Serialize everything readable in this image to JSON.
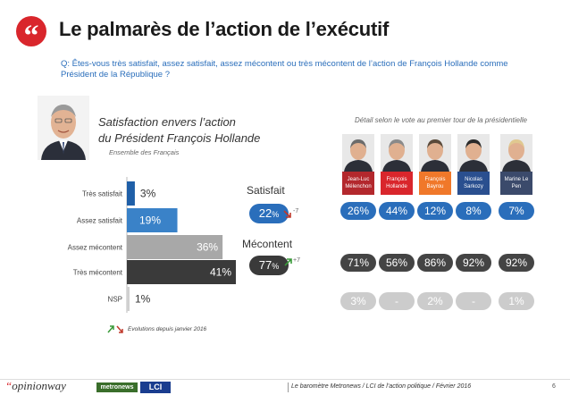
{
  "header": {
    "quote_glyph": "“",
    "title": "Le palmarès de l’action de l’exécutif",
    "question": "Q: Êtes-vous très satisfait, assez satisfait, assez mécontent ou très mécontent de l’action de François Hollande comme Président de la République ?"
  },
  "satisfaction": {
    "title_line1": "Satisfaction envers l’action",
    "title_line2": "du Président François Hollande",
    "subtitle": "Ensemble des Français"
  },
  "detail_title": "Détail selon le vote au premier tour de la présidentielle",
  "chart_data": {
    "type": "bar",
    "orientation": "horizontal",
    "categories": [
      "Très satisfait",
      "Assez satisfait",
      "Assez mécontent",
      "Très mécontent",
      "NSP"
    ],
    "values": [
      3,
      19,
      36,
      41,
      1
    ],
    "value_labels": [
      "3%",
      "19%",
      "36%",
      "41%",
      "1%"
    ],
    "colors": [
      "#1f5fa8",
      "#3a82c8",
      "#a8a8a8",
      "#3a3a3a",
      "#d0d0d0"
    ],
    "xlim": [
      0,
      41
    ]
  },
  "groups": {
    "satisfait": {
      "label": "Satisfait",
      "value": "22",
      "pct": "%",
      "evolution": "-7",
      "color": "#2a6ebb"
    },
    "mecontent": {
      "label": "Mécontent",
      "value": "77",
      "pct": "%",
      "evolution": "+7",
      "color": "#3a3a3a"
    }
  },
  "candidates": [
    {
      "name": "Jean-Luc Mélenchon",
      "name_color": "#b3282d",
      "sat": "26%",
      "mec": "71%",
      "nsp": "3%"
    },
    {
      "name": "François Hollande",
      "name_color": "#d9262c",
      "sat": "44%",
      "mec": "56%",
      "nsp": "-"
    },
    {
      "name": "François Bayrou",
      "name_color": "#f0782a",
      "sat": "12%",
      "mec": "86%",
      "nsp": "2%"
    },
    {
      "name": "Nicolas Sarkozy",
      "name_color": "#2a4f8f",
      "sat": "8%",
      "mec": "92%",
      "nsp": "-"
    },
    {
      "name": "Marine Le Pen",
      "name_color": "#3b4a6b",
      "sat": "7%",
      "mec": "92%",
      "nsp": "1%"
    }
  ],
  "pill_colors": {
    "sat": "#2a6ebb",
    "mec": "#444444",
    "nsp": "#cccccc"
  },
  "legend": {
    "text": "Evolutions depuis janvier 2016"
  },
  "footer": {
    "brand": "opinionway",
    "metro": "metronews",
    "lci": "LCI",
    "text": "Le baromètre Metronews / LCI de l’action politique / Février 2016",
    "page": "6"
  }
}
